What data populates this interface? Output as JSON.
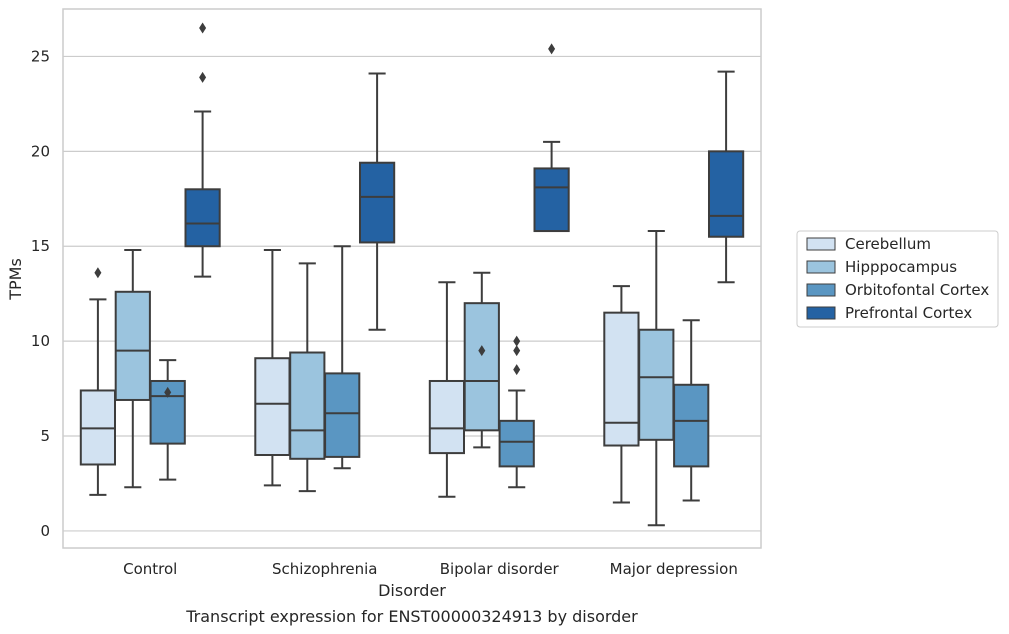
{
  "chart_data": {
    "type": "boxplot",
    "caption": "Transcript expression for ENST00000324913 by disorder",
    "xlabel": "Disorder",
    "ylabel": "TPMs",
    "ylim": [
      -0.9,
      27.5
    ],
    "yticks": [
      0,
      5,
      10,
      15,
      20,
      25
    ],
    "grid": "horizontal",
    "legend_position": "right",
    "categories": [
      "Control",
      "Schizophrenia",
      "Bipolar disorder",
      "Major depression"
    ],
    "series": [
      {
        "name": "Cerebellum",
        "color": "#d2e2f2",
        "boxes": [
          {
            "whisker_low": 1.9,
            "q1": 3.5,
            "median": 5.4,
            "q3": 7.4,
            "whisker_high": 12.2,
            "outliers": [
              13.6
            ]
          },
          {
            "whisker_low": 2.4,
            "q1": 4.0,
            "median": 6.7,
            "q3": 9.1,
            "whisker_high": 14.8,
            "outliers": []
          },
          {
            "whisker_low": 1.8,
            "q1": 4.1,
            "median": 5.4,
            "q3": 7.9,
            "whisker_high": 13.1,
            "outliers": []
          },
          {
            "whisker_low": 1.5,
            "q1": 4.5,
            "median": 5.7,
            "q3": 11.5,
            "whisker_high": 12.9,
            "outliers": []
          }
        ]
      },
      {
        "name": "Hipppocampus",
        "color": "#9bc4de",
        "boxes": [
          {
            "whisker_low": 2.3,
            "q1": 6.9,
            "median": 9.5,
            "q3": 12.6,
            "whisker_high": 14.8,
            "outliers": []
          },
          {
            "whisker_low": 2.1,
            "q1": 3.8,
            "median": 5.3,
            "q3": 9.4,
            "whisker_high": 14.1,
            "outliers": []
          },
          {
            "whisker_low": 4.4,
            "q1": 5.3,
            "median": 7.9,
            "q3": 12.0,
            "whisker_high": 13.6,
            "outliers": [
              9.5
            ]
          },
          {
            "whisker_low": 0.3,
            "q1": 4.8,
            "median": 8.1,
            "q3": 10.6,
            "whisker_high": 15.8,
            "outliers": []
          }
        ]
      },
      {
        "name": "Orbitofontal Cortex",
        "color": "#5a96c2",
        "boxes": [
          {
            "whisker_low": 2.7,
            "q1": 4.6,
            "median": 7.1,
            "q3": 7.9,
            "whisker_high": 9.0,
            "outliers": [
              7.3
            ]
          },
          {
            "whisker_low": 3.3,
            "q1": 3.9,
            "median": 6.2,
            "q3": 8.3,
            "whisker_high": 15.0,
            "outliers": []
          },
          {
            "whisker_low": 2.3,
            "q1": 3.4,
            "median": 4.7,
            "q3": 5.8,
            "whisker_high": 7.4,
            "outliers": [
              8.5,
              9.5,
              10.0
            ]
          },
          {
            "whisker_low": 1.6,
            "q1": 3.4,
            "median": 5.8,
            "q3": 7.7,
            "whisker_high": 11.1,
            "outliers": []
          }
        ]
      },
      {
        "name": "Prefrontal Cortex",
        "color": "#2462a3",
        "boxes": [
          {
            "whisker_low": 13.4,
            "q1": 15.0,
            "median": 16.2,
            "q3": 18.0,
            "whisker_high": 22.1,
            "outliers": [
              23.9,
              26.5
            ]
          },
          {
            "whisker_low": 10.6,
            "q1": 15.2,
            "median": 17.6,
            "q3": 19.4,
            "whisker_high": 24.1,
            "outliers": []
          },
          {
            "whisker_low": 15.8,
            "q1": 15.8,
            "median": 18.1,
            "q3": 19.1,
            "whisker_high": 20.5,
            "outliers": [
              25.4
            ]
          },
          {
            "whisker_low": 13.1,
            "q1": 15.5,
            "median": 16.6,
            "q3": 20.0,
            "whisker_high": 24.2,
            "outliers": []
          }
        ]
      }
    ]
  }
}
